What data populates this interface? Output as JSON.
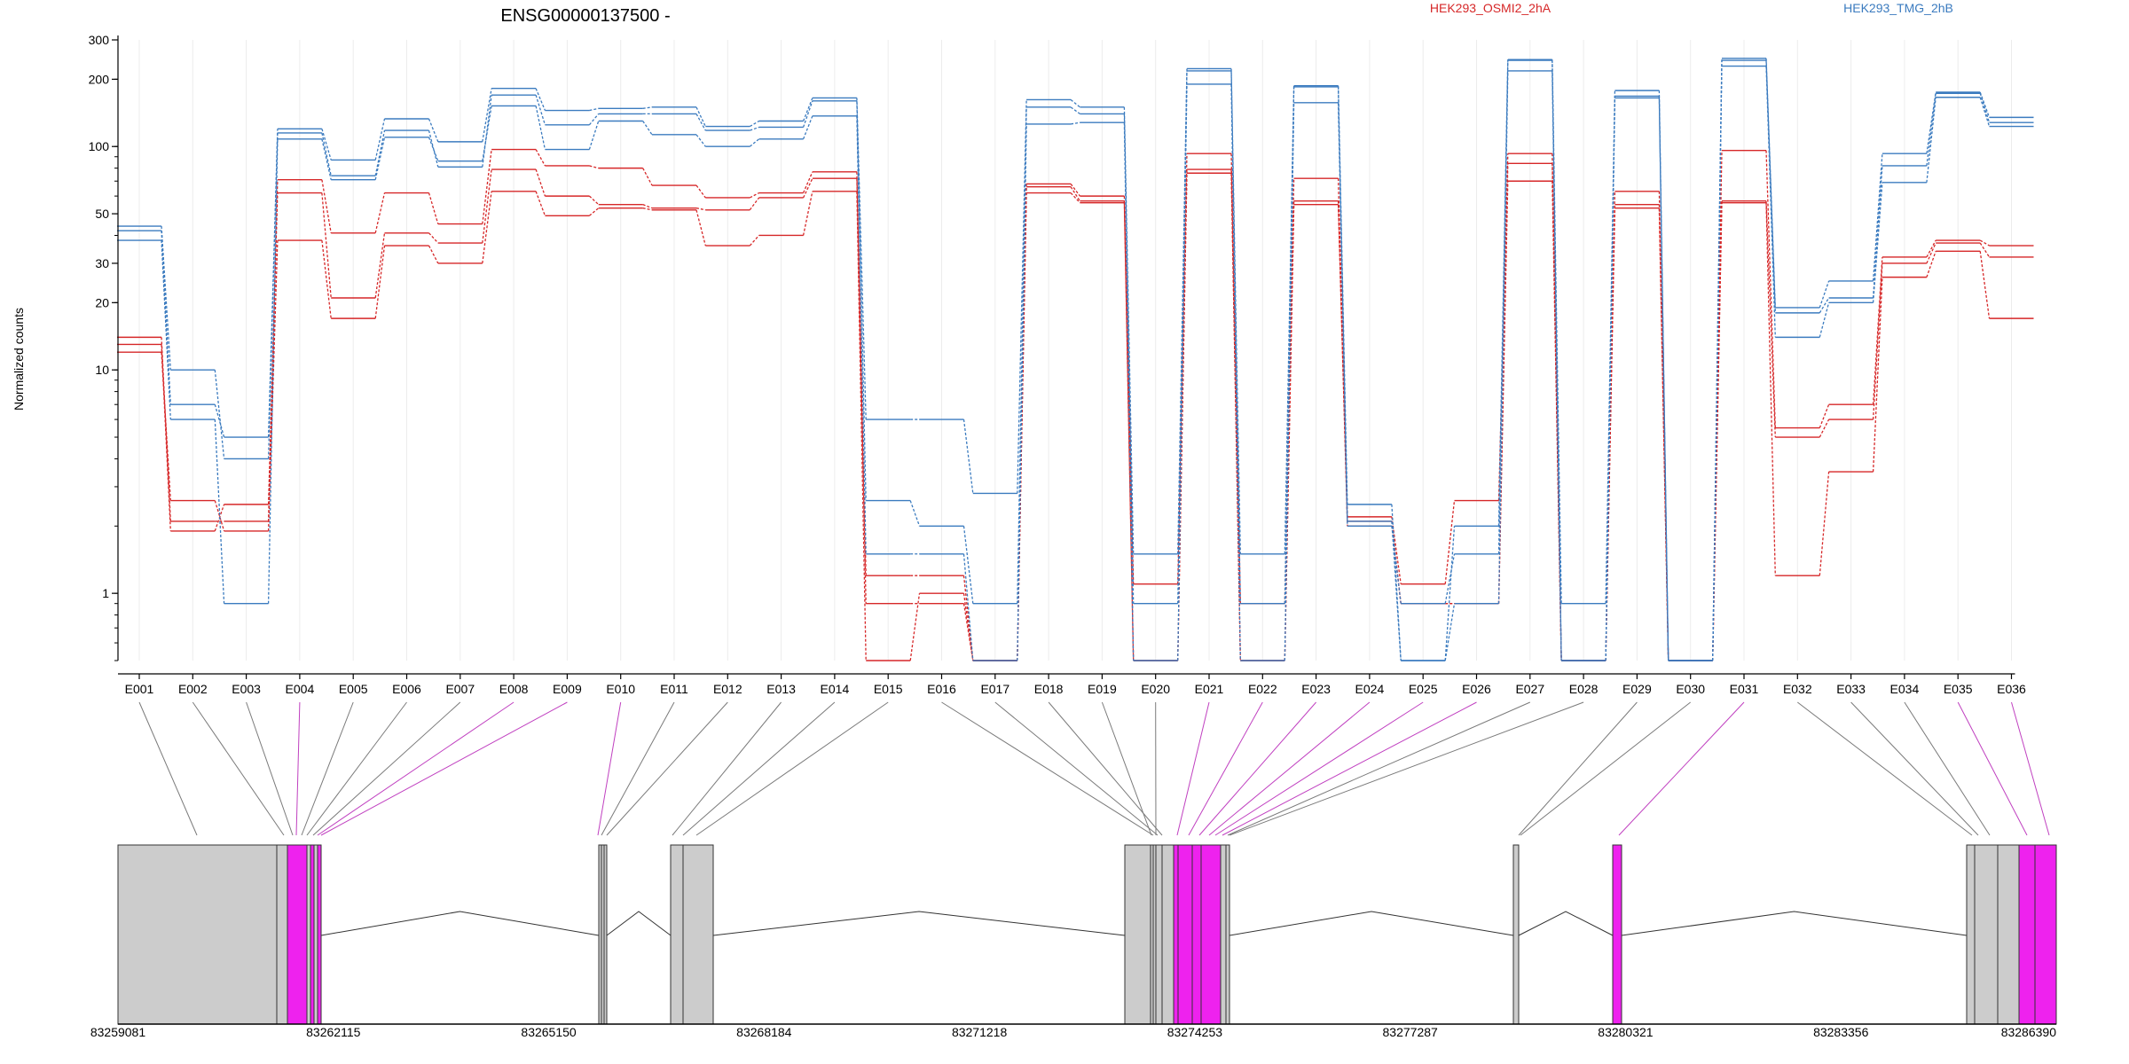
{
  "chart_data": {
    "type": "line",
    "title": "ENSG00000137500 -",
    "ylabel": "Normalized counts",
    "yscale": "log",
    "ylim": [
      0.5,
      300
    ],
    "yticks": [
      1,
      10,
      20,
      30,
      50,
      100,
      200,
      300
    ],
    "grid": true,
    "legend_position": "top",
    "legend": [
      {
        "label": "HEK293_OSMI2_2hA",
        "color": "#d62728"
      },
      {
        "label": "HEK293_TMG_2hB",
        "color": "#3b7bbf"
      }
    ],
    "categories": [
      "E001",
      "E002",
      "E003",
      "E004",
      "E005",
      "E006",
      "E007",
      "E008",
      "E009",
      "E010",
      "E011",
      "E012",
      "E013",
      "E014",
      "E015",
      "E016",
      "E017",
      "E018",
      "E019",
      "E020",
      "E021",
      "E022",
      "E023",
      "E024",
      "E025",
      "E026",
      "E027",
      "E028",
      "E029",
      "E030",
      "E031",
      "E032",
      "E033",
      "E034",
      "E035",
      "E036"
    ],
    "highlighted_exons": [
      "E004",
      "E008",
      "E009",
      "E010",
      "E021",
      "E022",
      "E023",
      "E024",
      "E025",
      "E026",
      "E031",
      "E035",
      "E036"
    ],
    "series": [
      {
        "group": "HEK293_OSMI2_2hA",
        "color": "#d62728",
        "values": [
          14,
          2.1,
          2.1,
          71,
          41,
          62,
          45,
          97,
          82,
          80,
          67,
          59,
          62,
          77,
          0.9,
          0.9,
          0.5,
          68,
          60,
          1.1,
          93,
          0.9,
          72,
          2.2,
          1.1,
          2.6,
          93,
          0.5,
          63,
          0.5,
          96,
          5.5,
          7,
          32,
          38,
          36
        ]
      },
      {
        "group": "HEK293_OSMI2_2hA",
        "color": "#d62728",
        "values": [
          13,
          1.9,
          2.5,
          62,
          21,
          41,
          37,
          79,
          60,
          55,
          53,
          52,
          59,
          72,
          1.2,
          1.2,
          0.5,
          66,
          57,
          0.5,
          79,
          0.5,
          57,
          2.0,
          0.9,
          0.9,
          84,
          0.5,
          55,
          0.5,
          57,
          5.0,
          6,
          30,
          37,
          32
        ]
      },
      {
        "group": "HEK293_OSMI2_2hA",
        "color": "#d62728",
        "values": [
          12,
          2.6,
          1.9,
          38,
          17,
          36,
          30,
          63,
          49,
          53,
          52,
          36,
          40,
          63,
          0.5,
          1.0,
          0.5,
          62,
          56,
          0.5,
          76,
          0.5,
          55,
          2.1,
          0.9,
          0.9,
          70,
          0.5,
          53,
          0.5,
          56,
          1.2,
          3.5,
          26,
          34,
          17
        ]
      },
      {
        "group": "HEK293_TMG_2hB",
        "color": "#3b7bbf",
        "values": [
          44,
          10,
          4.0,
          120,
          87,
          133,
          105,
          182,
          145,
          148,
          150,
          123,
          130,
          165,
          6.0,
          6.0,
          2.8,
          162,
          150,
          1.5,
          223,
          1.5,
          187,
          2.5,
          0.5,
          2.0,
          245,
          0.9,
          178,
          0.5,
          248,
          19,
          25,
          93,
          175,
          135
        ]
      },
      {
        "group": "HEK293_TMG_2hB",
        "color": "#3b7bbf",
        "values": [
          42,
          7,
          5.0,
          115,
          74,
          118,
          81,
          170,
          125,
          140,
          140,
          118,
          122,
          160,
          2.6,
          2.0,
          0.9,
          150,
          140,
          0.9,
          218,
          0.9,
          185,
          2.0,
          0.9,
          1.5,
          243,
          0.5,
          168,
          0.5,
          243,
          18,
          21,
          82,
          173,
          128
        ]
      },
      {
        "group": "HEK293_TMG_2hB",
        "color": "#3b7bbf",
        "values": [
          38,
          6,
          0.9,
          108,
          71,
          110,
          86,
          152,
          97,
          130,
          113,
          100,
          108,
          137,
          1.5,
          1.5,
          0.5,
          126,
          128,
          0.5,
          190,
          0.5,
          157,
          2.1,
          0.5,
          0.9,
          218,
          0.5,
          165,
          0.5,
          229,
          14,
          20,
          69,
          166,
          123
        ]
      }
    ],
    "gene_model": {
      "coordinate_labels": [
        "83259081",
        "83262115",
        "83265150",
        "83268184",
        "83271218",
        "83274253",
        "83277287",
        "83280321",
        "83283356",
        "83286390"
      ]
    }
  }
}
